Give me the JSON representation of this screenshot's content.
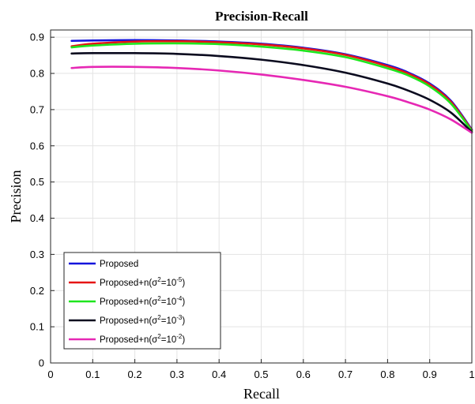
{
  "chart_data": {
    "type": "line",
    "title": "Precision-Recall",
    "xlabel": "Recall",
    "ylabel": "Precision",
    "xlim": [
      0,
      1
    ],
    "ylim": [
      0,
      0.92
    ],
    "grid": true,
    "legend_position": "bottom-left",
    "xticks": [
      "0",
      "0.1",
      "0.2",
      "0.3",
      "0.4",
      "0.5",
      "0.6",
      "0.7",
      "0.8",
      "0.9",
      "1"
    ],
    "yticks": [
      "0",
      "0.1",
      "0.2",
      "0.3",
      "0.4",
      "0.5",
      "0.6",
      "0.7",
      "0.8",
      "0.9"
    ],
    "series": [
      {
        "legend": {
          "base": "Proposed",
          "sup": "",
          "mid": "",
          "exp": "",
          "end": ""
        },
        "color": "#1414dc",
        "x": [
          0.05,
          0.1,
          0.2,
          0.3,
          0.4,
          0.5,
          0.6,
          0.7,
          0.8,
          0.85,
          0.9,
          0.95,
          1.0
        ],
        "y": [
          0.89,
          0.891,
          0.892,
          0.891,
          0.888,
          0.882,
          0.871,
          0.853,
          0.823,
          0.802,
          0.772,
          0.725,
          0.645
        ]
      },
      {
        "legend": {
          "base": "Proposed+n(σ",
          "sup": "2",
          "mid": "=10",
          "exp": "-5",
          "end": ")"
        },
        "color": "#e61414",
        "x": [
          0.05,
          0.1,
          0.2,
          0.3,
          0.4,
          0.5,
          0.6,
          0.7,
          0.8,
          0.85,
          0.9,
          0.95,
          1.0
        ],
        "y": [
          0.875,
          0.882,
          0.888,
          0.889,
          0.886,
          0.88,
          0.869,
          0.851,
          0.82,
          0.799,
          0.769,
          0.722,
          0.643
        ]
      },
      {
        "legend": {
          "base": "Proposed+n(σ",
          "sup": "2",
          "mid": "=10",
          "exp": "-4",
          "end": ")"
        },
        "color": "#1ee61e",
        "x": [
          0.05,
          0.1,
          0.2,
          0.3,
          0.4,
          0.5,
          0.6,
          0.7,
          0.8,
          0.85,
          0.9,
          0.95,
          1.0
        ],
        "y": [
          0.872,
          0.877,
          0.882,
          0.883,
          0.881,
          0.874,
          0.863,
          0.845,
          0.814,
          0.794,
          0.764,
          0.717,
          0.641
        ]
      },
      {
        "legend": {
          "base": "Proposed+n(σ",
          "sup": "2",
          "mid": "=10",
          "exp": "-3",
          "end": ")"
        },
        "color": "#0a0a1e",
        "x": [
          0.05,
          0.1,
          0.2,
          0.3,
          0.4,
          0.5,
          0.6,
          0.7,
          0.8,
          0.85,
          0.9,
          0.95,
          1.0
        ],
        "y": [
          0.855,
          0.856,
          0.856,
          0.854,
          0.848,
          0.838,
          0.823,
          0.802,
          0.772,
          0.752,
          0.727,
          0.692,
          0.638
        ]
      },
      {
        "legend": {
          "base": "Proposed+n(σ",
          "sup": "2",
          "mid": "=10",
          "exp": "-2",
          "end": ")"
        },
        "color": "#e628b4",
        "x": [
          0.05,
          0.1,
          0.2,
          0.3,
          0.4,
          0.5,
          0.6,
          0.7,
          0.8,
          0.85,
          0.9,
          0.95,
          1.0
        ],
        "y": [
          0.815,
          0.818,
          0.818,
          0.815,
          0.808,
          0.797,
          0.782,
          0.763,
          0.737,
          0.72,
          0.7,
          0.673,
          0.636
        ]
      }
    ]
  }
}
